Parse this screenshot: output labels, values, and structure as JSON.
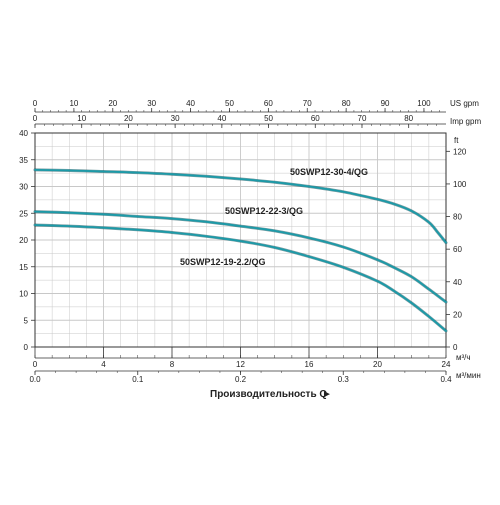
{
  "chart_data": {
    "type": "line",
    "xlabel": "Производительность Q",
    "arrow": "►",
    "ylim": [
      0,
      40
    ],
    "xlim": [
      0,
      24
    ],
    "grid": true,
    "y_ticks": [
      "0",
      "5",
      "10",
      "15",
      "20",
      "25",
      "30",
      "35",
      "40"
    ],
    "y_ft_unit": "ft",
    "y_ft_ticks": [
      "0",
      "20",
      "40",
      "60",
      "80",
      "100",
      "120"
    ],
    "x_m3h_ticks": [
      "0",
      "4",
      "8",
      "12",
      "16",
      "20",
      "24"
    ],
    "x_m3h_unit": "м³/ч",
    "x_m3min_ticks": [
      "0.0",
      "0.1",
      "0.2",
      "0.3",
      "0.4"
    ],
    "x_m3min_unit": "м³/мин",
    "top_us_ticks": [
      "0",
      "10",
      "20",
      "30",
      "40",
      "50",
      "60",
      "70",
      "80",
      "90",
      "100"
    ],
    "top_us_unit": "US gpm",
    "top_imp_ticks": [
      "0",
      "10",
      "20",
      "30",
      "40",
      "50",
      "60",
      "70",
      "80"
    ],
    "top_imp_unit": "Imp gpm",
    "series": [
      {
        "name": "50SWP12-30-4/QG",
        "x": [
          0,
          2,
          4,
          6,
          8,
          10,
          12,
          14,
          16,
          18,
          20,
          21,
          22,
          23,
          23.5,
          24
        ],
        "y": [
          33.1,
          33.0,
          32.8,
          32.6,
          32.3,
          31.9,
          31.4,
          30.8,
          30.0,
          29.0,
          27.6,
          26.7,
          25.4,
          23.3,
          21.5,
          19.5
        ]
      },
      {
        "name": "50SWP12-22-3/QG",
        "x": [
          0,
          2,
          4,
          6,
          8,
          10,
          12,
          14,
          16,
          18,
          20,
          21,
          22,
          23,
          24
        ],
        "y": [
          25.3,
          25.1,
          24.8,
          24.4,
          24.0,
          23.4,
          22.6,
          21.7,
          20.4,
          18.7,
          16.3,
          14.8,
          13.1,
          10.8,
          8.4
        ]
      },
      {
        "name": "50SWP12-19-2.2/QG",
        "x": [
          0,
          2,
          4,
          6,
          8,
          10,
          12,
          14,
          16,
          18,
          20,
          21,
          22,
          23,
          24
        ],
        "y": [
          22.8,
          22.6,
          22.3,
          21.9,
          21.4,
          20.7,
          19.8,
          18.6,
          16.9,
          14.9,
          12.3,
          10.4,
          8.2,
          5.7,
          3.0
        ]
      }
    ],
    "colors": {
      "curve": "#1b9aa8",
      "curve_dark": "#0d4f58",
      "grid": "#c8c8c8",
      "axis": "#333333"
    }
  }
}
